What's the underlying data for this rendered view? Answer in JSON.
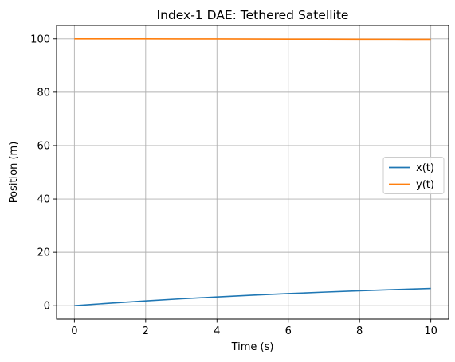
{
  "chart_data": {
    "type": "line",
    "title": "Index-1 DAE: Tethered Satellite",
    "xlabel": "Time (s)",
    "ylabel": "Position (m)",
    "xlim": [
      -0.5,
      10.5
    ],
    "ylim": [
      -5,
      105
    ],
    "xticks": [
      0,
      2,
      4,
      6,
      8,
      10
    ],
    "yticks": [
      0,
      20,
      40,
      60,
      80,
      100
    ],
    "xtick_labels": [
      "0",
      "2",
      "4",
      "6",
      "8",
      "10"
    ],
    "ytick_labels": [
      "0",
      "20",
      "40",
      "60",
      "80",
      "100"
    ],
    "grid": true,
    "legend": "center-right",
    "x": [
      0,
      1,
      2,
      3,
      4,
      5,
      6,
      7,
      8,
      9,
      10
    ],
    "series": [
      {
        "name": "x(t)",
        "color": "#1f77b4",
        "values": [
          0,
          0.95,
          1.8,
          2.6,
          3.3,
          3.95,
          4.55,
          5.1,
          5.6,
          6.05,
          6.45
        ]
      },
      {
        "name": "y(t)",
        "color": "#ff7f0e",
        "values": [
          100,
          99.99,
          99.98,
          99.96,
          99.94,
          99.92,
          99.89,
          99.87,
          99.84,
          99.82,
          99.79
        ]
      }
    ]
  }
}
